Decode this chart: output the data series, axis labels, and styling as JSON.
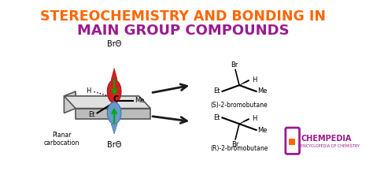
{
  "title_line1": "STEREOCHEMISTRY AND BONDING IN",
  "title_line2": "MAIN GROUP COMPOUNDS",
  "title_color1": "#FF6600",
  "title_color2": "#9B1B8E",
  "bg_color": "#FFFFFF",
  "figsize": [
    4.74,
    2.31
  ],
  "dpi": 100,
  "chempedia_color": "#9B1B8E",
  "chempedia_orange": "#FF6600",
  "arrow_color": "#1A1A1A",
  "green_color": "#00AA00",
  "label_s": "(S)-2-bromobutane",
  "label_r": "(R)-2-bromobutane",
  "label_planar": "Planar\ncarbocation",
  "bromo_top": "BrΘ",
  "bromo_bot": "BrΘ"
}
